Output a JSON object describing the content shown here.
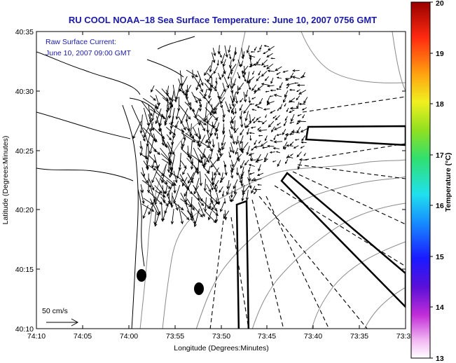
{
  "title": "RU COOL  NOAA–18  Sea Surface Temperature:  June 10, 2007 0756 GMT",
  "annotation": {
    "line1": "Raw Surface Current:",
    "line2": "June 10, 2007 09:00 GMT"
  },
  "axes": {
    "xlabel": "Longitude (Degrees:Minutes)",
    "ylabel": "Latitude (Degrees:Minutes)",
    "x_ticks": [
      "74:10",
      "74:05",
      "74:00",
      "73:55",
      "73:50",
      "73:45",
      "73:40",
      "73:35",
      "73:3"
    ],
    "y_ticks": [
      "40:35",
      "40:30",
      "40:25",
      "40:20",
      "40:15",
      "40:10"
    ]
  },
  "scale_label": "50 cm/s",
  "colorbar": {
    "label": "Temperature (°C)",
    "min": 13,
    "max": 20,
    "ticks": [
      "20",
      "19",
      "18",
      "17",
      "16",
      "15",
      "14",
      "13"
    ]
  },
  "colors": {
    "title": "#1a1aa6",
    "land_outline": "#000000",
    "isobath": "#8a8a8a",
    "vectors": "#000000"
  }
}
